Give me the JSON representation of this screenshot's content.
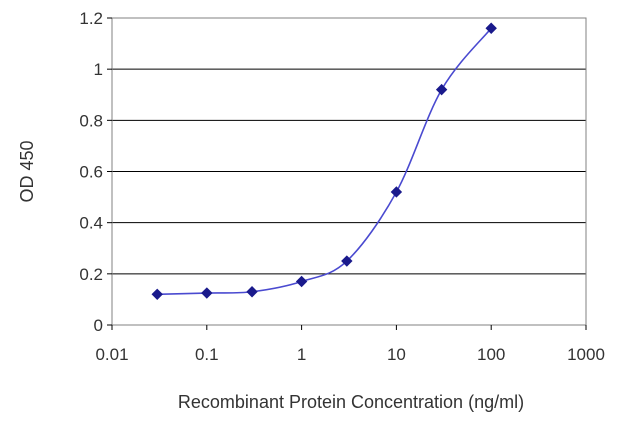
{
  "chart_data": {
    "type": "line",
    "title": "",
    "xlabel": "Recombinant Protein Concentration (ng/ml)",
    "ylabel": "OD 450",
    "x_scale": "log",
    "xlim": [
      0.01,
      1000
    ],
    "ylim": [
      0,
      1.2
    ],
    "x_ticks": [
      0.01,
      0.1,
      1,
      10,
      100,
      1000
    ],
    "x_tick_labels": [
      "0.01",
      "0.1",
      "1",
      "10",
      "100",
      "1000"
    ],
    "y_ticks": [
      0,
      0.2,
      0.4,
      0.6,
      0.8,
      1,
      1.2
    ],
    "y_tick_labels": [
      "0",
      "0.2",
      "0.4",
      "0.6",
      "0.8",
      "1",
      "1.2"
    ],
    "grid": "horizontal",
    "legend": "none",
    "series": [
      {
        "color": "#1a1a8c",
        "marker": "diamond",
        "x": [
          0.03,
          0.1,
          0.3,
          1,
          3,
          10,
          30,
          100
        ],
        "y": [
          0.12,
          0.125,
          0.13,
          0.17,
          0.25,
          0.52,
          0.92,
          1.16
        ]
      }
    ]
  }
}
